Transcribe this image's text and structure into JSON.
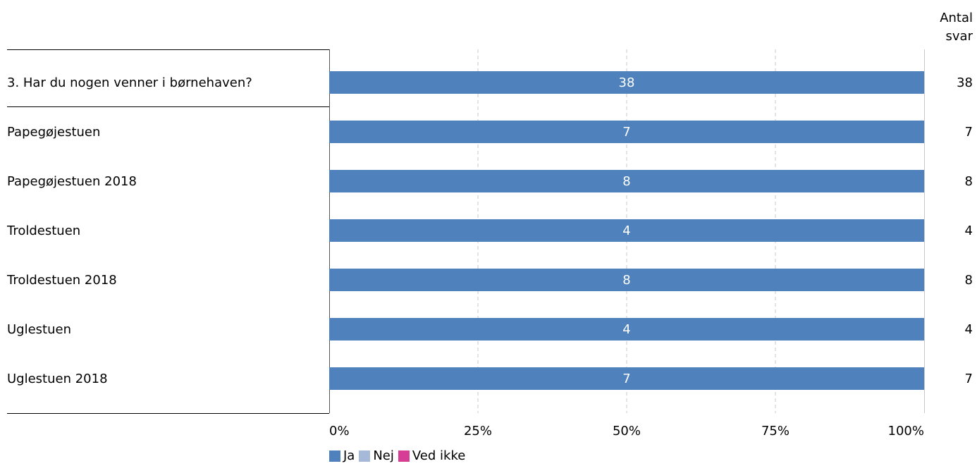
{
  "chart_data": {
    "type": "bar",
    "orientation": "horizontal",
    "stacked": true,
    "percent_axis": true,
    "categories": [
      "3. Har du nogen venner i børnehaven?",
      "Papegøjestuen",
      "Papegøjestuen 2018",
      "Troldestuen",
      "Troldestuen 2018",
      "Uglestuen",
      "Uglestuen 2018"
    ],
    "series": [
      {
        "name": "Ja",
        "color": "#4f81bd",
        "values": [
          38,
          7,
          8,
          4,
          8,
          4,
          7
        ]
      },
      {
        "name": "Nej",
        "color": "#a7b9d9",
        "values": [
          0,
          0,
          0,
          0,
          0,
          0,
          0
        ]
      },
      {
        "name": "Ved ikke",
        "color": "#d63e95",
        "values": [
          0,
          0,
          0,
          0,
          0,
          0,
          0
        ]
      }
    ],
    "totals_header": [
      "Antal",
      "svar"
    ],
    "totals": [
      38,
      7,
      8,
      4,
      8,
      4,
      7
    ],
    "x_ticks": [
      "0%",
      "25%",
      "50%",
      "75%",
      "100%"
    ],
    "xlim": [
      0,
      100
    ],
    "grid": true,
    "legend_position": "bottom"
  }
}
